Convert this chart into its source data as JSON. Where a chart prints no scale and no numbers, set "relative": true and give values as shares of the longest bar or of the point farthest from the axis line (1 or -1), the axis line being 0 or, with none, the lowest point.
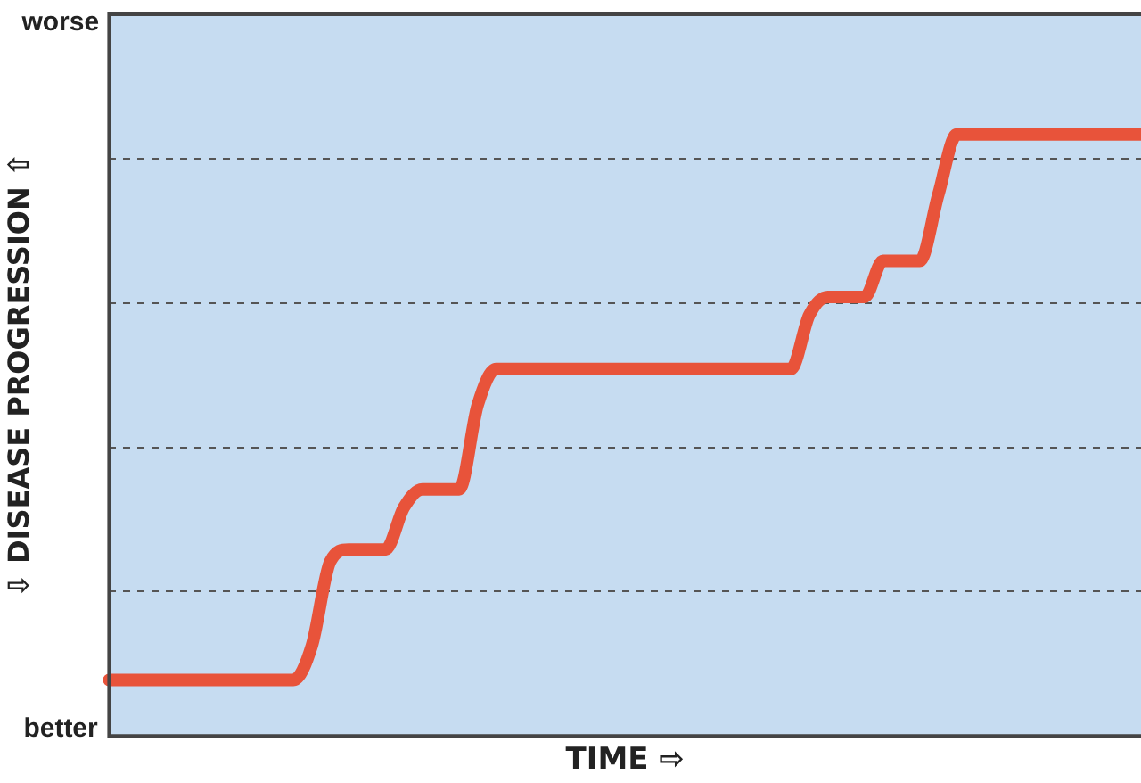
{
  "chart_data": {
    "type": "line",
    "relative": true,
    "xlabel": "TIME ⇨",
    "ylabel": "⇩ DISEASE PROGRESSION ⇧",
    "annotations": [
      "worse",
      "better"
    ],
    "categories": [
      null,
      null,
      null,
      null,
      null,
      null,
      null,
      null,
      null,
      null,
      null,
      null,
      null,
      null,
      null,
      null,
      null,
      null,
      null,
      null,
      null,
      null,
      null,
      null,
      null,
      null,
      null,
      null,
      null,
      null,
      null,
      null,
      null,
      null,
      null,
      null,
      null,
      null,
      null,
      null,
      null,
      null,
      null,
      null,
      null,
      null,
      null,
      null,
      null,
      null,
      null,
      null,
      null,
      null,
      null,
      null,
      null
    ],
    "series": [
      {
        "color": "#e8533a",
        "values": [
          0.093,
          0.093,
          0.093,
          0.093,
          0.093,
          0.093,
          0.093,
          0.093,
          0.093,
          0.093,
          0.093,
          0.15,
          0.29,
          0.31,
          0.31,
          0.31,
          0.38,
          0.41,
          0.41,
          0.41,
          0.55,
          0.61,
          0.61,
          0.61,
          0.61,
          0.61,
          0.61,
          0.61,
          0.61,
          0.61,
          0.61,
          0.61,
          0.61,
          0.61,
          0.61,
          0.61,
          0.61,
          0.61,
          0.7,
          0.73,
          0.73,
          0.73,
          0.79,
          0.79,
          0.79,
          0.9,
          1,
          1,
          1,
          1,
          1,
          1,
          1,
          1,
          1,
          1,
          1
        ]
      }
    ],
    "grid": "y",
    "legend": false,
    "marker": "none",
    "line_style": "solid",
    "tick_labels": false
  }
}
